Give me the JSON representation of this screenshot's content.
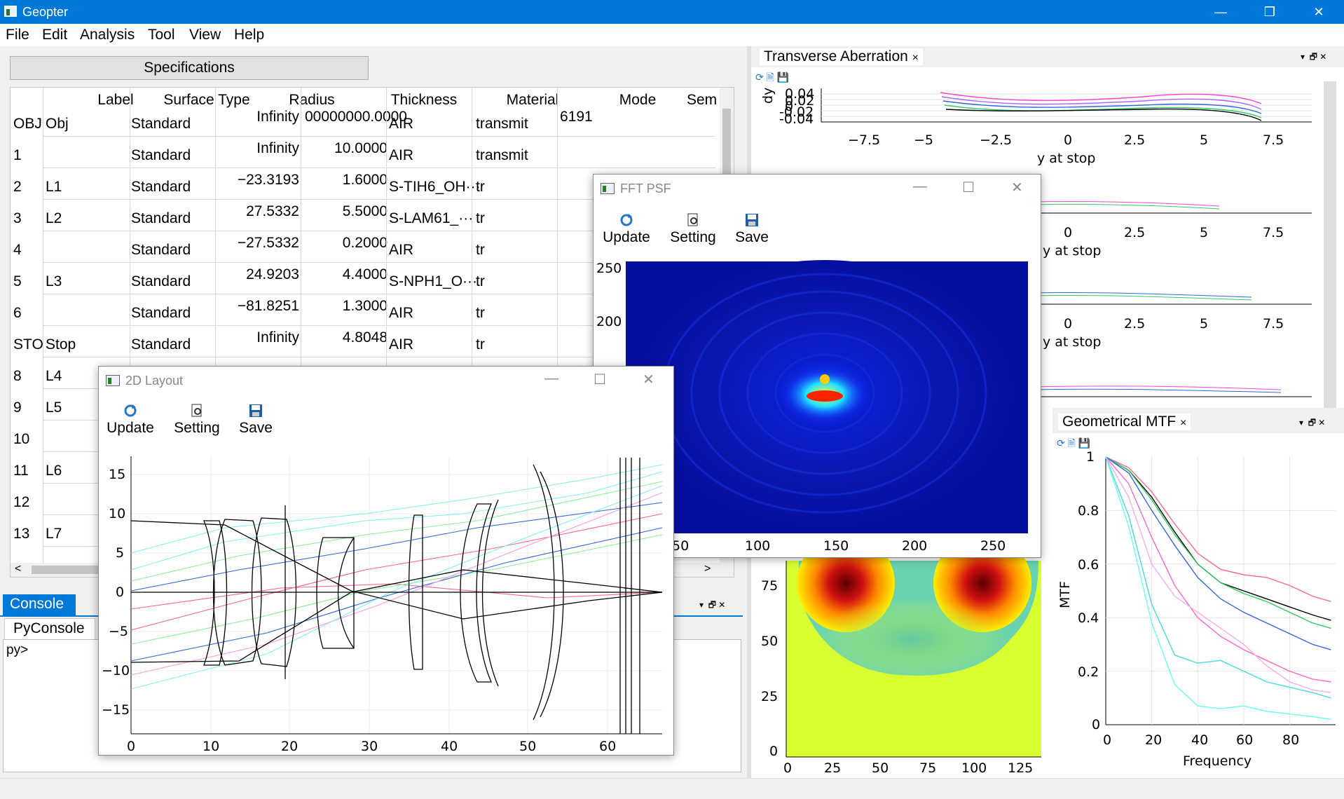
{
  "app": {
    "title": "Geopter"
  },
  "window_controls": {
    "minimize": "—",
    "restore": "❐",
    "close": "✕"
  },
  "menu": [
    "File",
    "Edit",
    "Analysis",
    "Tool",
    "View",
    "Help"
  ],
  "spec": {
    "button_label": "Specifications",
    "columns": [
      "Label",
      "Surface Type",
      "Radius",
      "Thickness",
      "Material",
      "Mode",
      "Sem"
    ],
    "rows": [
      {
        "index": "OBJ",
        "label": "Obj",
        "type": "Standard",
        "radius": "Infinity",
        "thickness": "00000000.0000",
        "material": "AIR",
        "mode": "transmit",
        "semi": "6191"
      },
      {
        "index": "1",
        "label": "",
        "type": "Standard",
        "radius": "Infinity",
        "thickness": "10.0000",
        "material": "AIR",
        "mode": "transmit",
        "semi": ""
      },
      {
        "index": "2",
        "label": "L1",
        "type": "Standard",
        "radius": "−23.3193",
        "thickness": "1.6000",
        "material": "S-TIH6_OH···",
        "mode": "tr",
        "semi": ""
      },
      {
        "index": "3",
        "label": "L2",
        "type": "Standard",
        "radius": "27.5332",
        "thickness": "5.5000",
        "material": "S-LAM61_···",
        "mode": "tr",
        "semi": ""
      },
      {
        "index": "4",
        "label": "",
        "type": "Standard",
        "radius": "−27.5332",
        "thickness": "0.2000",
        "material": "AIR",
        "mode": "tr",
        "semi": ""
      },
      {
        "index": "5",
        "label": "L3",
        "type": "Standard",
        "radius": "24.9203",
        "thickness": "4.4000",
        "material": "S-NPH1_O···",
        "mode": "tr",
        "semi": ""
      },
      {
        "index": "6",
        "label": "",
        "type": "Standard",
        "radius": "−81.8251",
        "thickness": "1.3000",
        "material": "AIR",
        "mode": "tr",
        "semi": ""
      },
      {
        "index": "STO",
        "label": "Stop",
        "type": "Standard",
        "radius": "Infinity",
        "thickness": "4.8048",
        "material": "AIR",
        "mode": "tr",
        "semi": ""
      },
      {
        "index": "8",
        "label": "L4",
        "type": "",
        "radius": "",
        "thickness": "",
        "material": "",
        "mode": "",
        "semi": ""
      },
      {
        "index": "9",
        "label": "L5",
        "type": "",
        "radius": "",
        "thickness": "",
        "material": "",
        "mode": "",
        "semi": ""
      },
      {
        "index": "10",
        "label": "",
        "type": "",
        "radius": "",
        "thickness": "",
        "material": "",
        "mode": "",
        "semi": ""
      },
      {
        "index": "11",
        "label": "L6",
        "type": "",
        "radius": "",
        "thickness": "",
        "material": "",
        "mode": "",
        "semi": ""
      },
      {
        "index": "12",
        "label": "",
        "type": "",
        "radius": "",
        "thickness": "",
        "material": "",
        "mode": "",
        "semi": ""
      },
      {
        "index": "13",
        "label": "L7",
        "type": "",
        "radius": "",
        "thickness": "",
        "material": "",
        "mode": "",
        "semi": ""
      }
    ]
  },
  "console": {
    "tab": "Console",
    "sub_tab": "PyConsole",
    "prompt": "py>"
  },
  "transverse": {
    "title": "Transverse Aberration",
    "close": "×",
    "ylabel": "dy",
    "yticks": [
      "0.04",
      "0.02",
      "0",
      "-0.02",
      "-0.04"
    ],
    "xticks": [
      "−7.5",
      "−5",
      "−2.5",
      "0",
      "2.5",
      "5",
      "7.5"
    ],
    "xlabel": "y at stop",
    "partial_xticks": [
      "0",
      "2.5",
      "5",
      "7.5"
    ],
    "partial_xlabel": "y at stop"
  },
  "mtf": {
    "title": "Geometrical MTF",
    "close": "×",
    "ylabel": "MTF",
    "xlabel": "Frequency",
    "yticks": [
      "1",
      "0.8",
      "0.6",
      "0.4",
      "0.2",
      "0"
    ],
    "xticks": [
      "0",
      "20",
      "40",
      "60",
      "80"
    ]
  },
  "wavefront": {
    "yticks": [
      "75",
      "50",
      "25",
      "0"
    ],
    "xticks": [
      "0",
      "25",
      "50",
      "75",
      "100",
      "125"
    ]
  },
  "fft": {
    "title": "FFT PSF",
    "toolbar": [
      "Update",
      "Setting",
      "Save"
    ],
    "yticks": [
      "250",
      "200"
    ],
    "xticks": [
      "50",
      "100",
      "150",
      "200",
      "250"
    ]
  },
  "layout2d": {
    "title": "2D Layout",
    "toolbar": [
      "Update",
      "Setting",
      "Save"
    ],
    "yticks": [
      "15",
      "10",
      "5",
      "0",
      "−5",
      "−10",
      "−15"
    ],
    "xticks": [
      "0",
      "10",
      "20",
      "30",
      "40",
      "50",
      "60"
    ]
  },
  "chart_data": [
    {
      "type": "line",
      "title": "Geometrical MTF",
      "xlabel": "Frequency",
      "ylabel": "MTF",
      "xlim": [
        0,
        100
      ],
      "ylim": [
        0,
        1
      ],
      "x": [
        0,
        10,
        20,
        30,
        40,
        50,
        60,
        70,
        80,
        90,
        98
      ],
      "series": [
        {
          "color": "#000000",
          "values": [
            1.0,
            0.95,
            0.85,
            0.72,
            0.6,
            0.53,
            0.5,
            0.47,
            0.44,
            0.41,
            0.39
          ]
        },
        {
          "color": "#ff6688",
          "values": [
            1.0,
            0.96,
            0.87,
            0.75,
            0.64,
            0.58,
            0.56,
            0.55,
            0.52,
            0.48,
            0.46
          ]
        },
        {
          "color": "#33cc66",
          "values": [
            1.0,
            0.95,
            0.84,
            0.71,
            0.6,
            0.53,
            0.49,
            0.46,
            0.42,
            0.38,
            0.36
          ]
        },
        {
          "color": "#3366dd",
          "values": [
            1.0,
            0.94,
            0.8,
            0.67,
            0.55,
            0.47,
            0.42,
            0.38,
            0.34,
            0.3,
            0.28
          ]
        },
        {
          "color": "#ff66cc",
          "values": [
            1.0,
            0.9,
            0.7,
            0.52,
            0.4,
            0.33,
            0.28,
            0.24,
            0.2,
            0.17,
            0.16
          ]
        },
        {
          "color": "#ffaaee",
          "values": [
            1.0,
            0.85,
            0.6,
            0.48,
            0.42,
            0.36,
            0.3,
            0.22,
            0.16,
            0.13,
            0.12
          ]
        },
        {
          "color": "#44dddd",
          "values": [
            1.0,
            0.78,
            0.45,
            0.26,
            0.23,
            0.24,
            0.2,
            0.16,
            0.14,
            0.12,
            0.1
          ]
        },
        {
          "color": "#66ffee",
          "values": [
            1.0,
            0.74,
            0.38,
            0.15,
            0.07,
            0.06,
            0.07,
            0.05,
            0.04,
            0.03,
            0.02
          ]
        }
      ]
    }
  ]
}
